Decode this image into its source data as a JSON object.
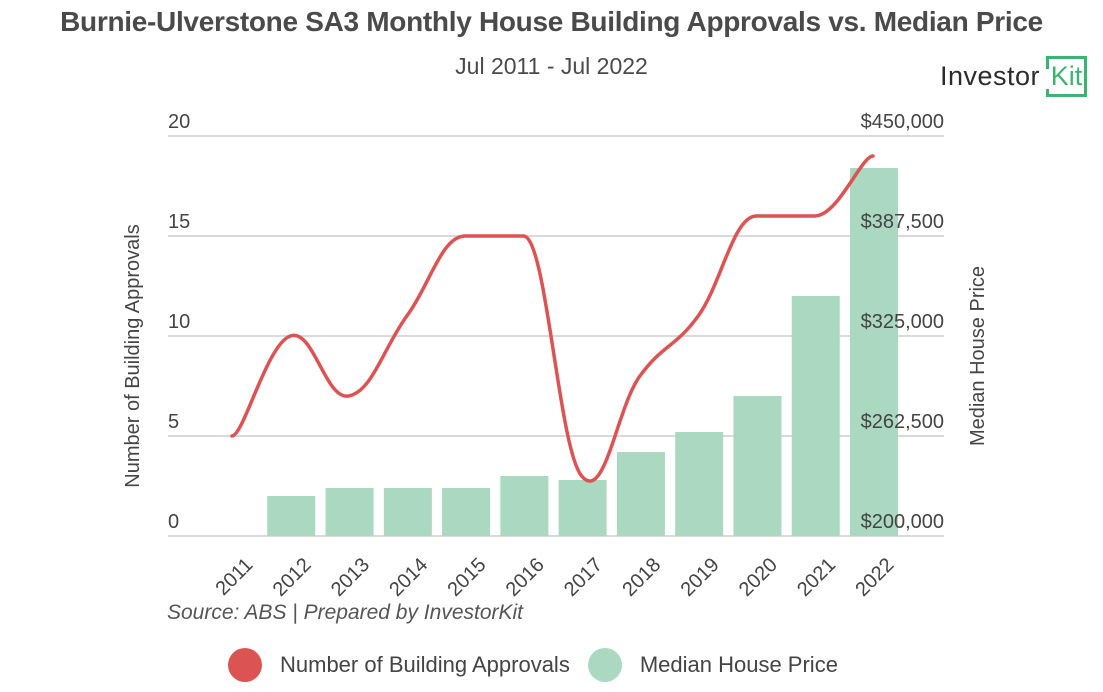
{
  "title": "Burnie-Ulverstone SA3 Monthly House Building Approvals vs. Median Price",
  "subtitle": "Jul 2011 - Jul 2022",
  "logo": {
    "text_main": "Investor",
    "text_accent": "Kit",
    "accent_color": "#3cb371"
  },
  "source": "Source: ABS | Prepared by InvestorKit",
  "chart_data": {
    "type": "bar",
    "title": "Burnie-Ulverstone SA3 Monthly House Building Approvals vs. Median Price",
    "subtitle": "Jul 2011 - Jul 2022",
    "categories": [
      "2011",
      "2012",
      "2013",
      "2014",
      "2015",
      "2016",
      "2017",
      "2018",
      "2019",
      "2020",
      "2021",
      "2022"
    ],
    "series": [
      {
        "name": "Number of Building Approvals",
        "type": "line",
        "axis": "left",
        "color": "#dc5353",
        "smooth": true,
        "values": [
          5,
          10,
          7,
          11,
          15,
          15,
          3,
          8,
          11,
          16,
          16,
          19
        ]
      },
      {
        "name": "Median House Price",
        "type": "bar",
        "axis": "right",
        "color": "#aad8c0",
        "values": [
          null,
          225000,
          230000,
          230000,
          230000,
          237500,
          235000,
          252500,
          265000,
          287500,
          350000,
          430000
        ]
      }
    ],
    "ylabel": "Number of Building Approvals",
    "ylim": [
      0,
      20
    ],
    "yticks": [
      "0",
      "5",
      "10",
      "15",
      "20"
    ],
    "y2label": "Median House Price",
    "y2lim": [
      200000,
      450000
    ],
    "y2ticks": [
      "$200,000",
      "$262,500",
      "$325,000",
      "$387,500",
      "$450,000"
    ],
    "xlabel": "",
    "grid": true,
    "legend": {
      "position": "bottom",
      "entries": [
        {
          "label": "Number of Building Approvals",
          "color": "#dc5353"
        },
        {
          "label": "Median House Price",
          "color": "#aad8c0"
        }
      ]
    }
  }
}
